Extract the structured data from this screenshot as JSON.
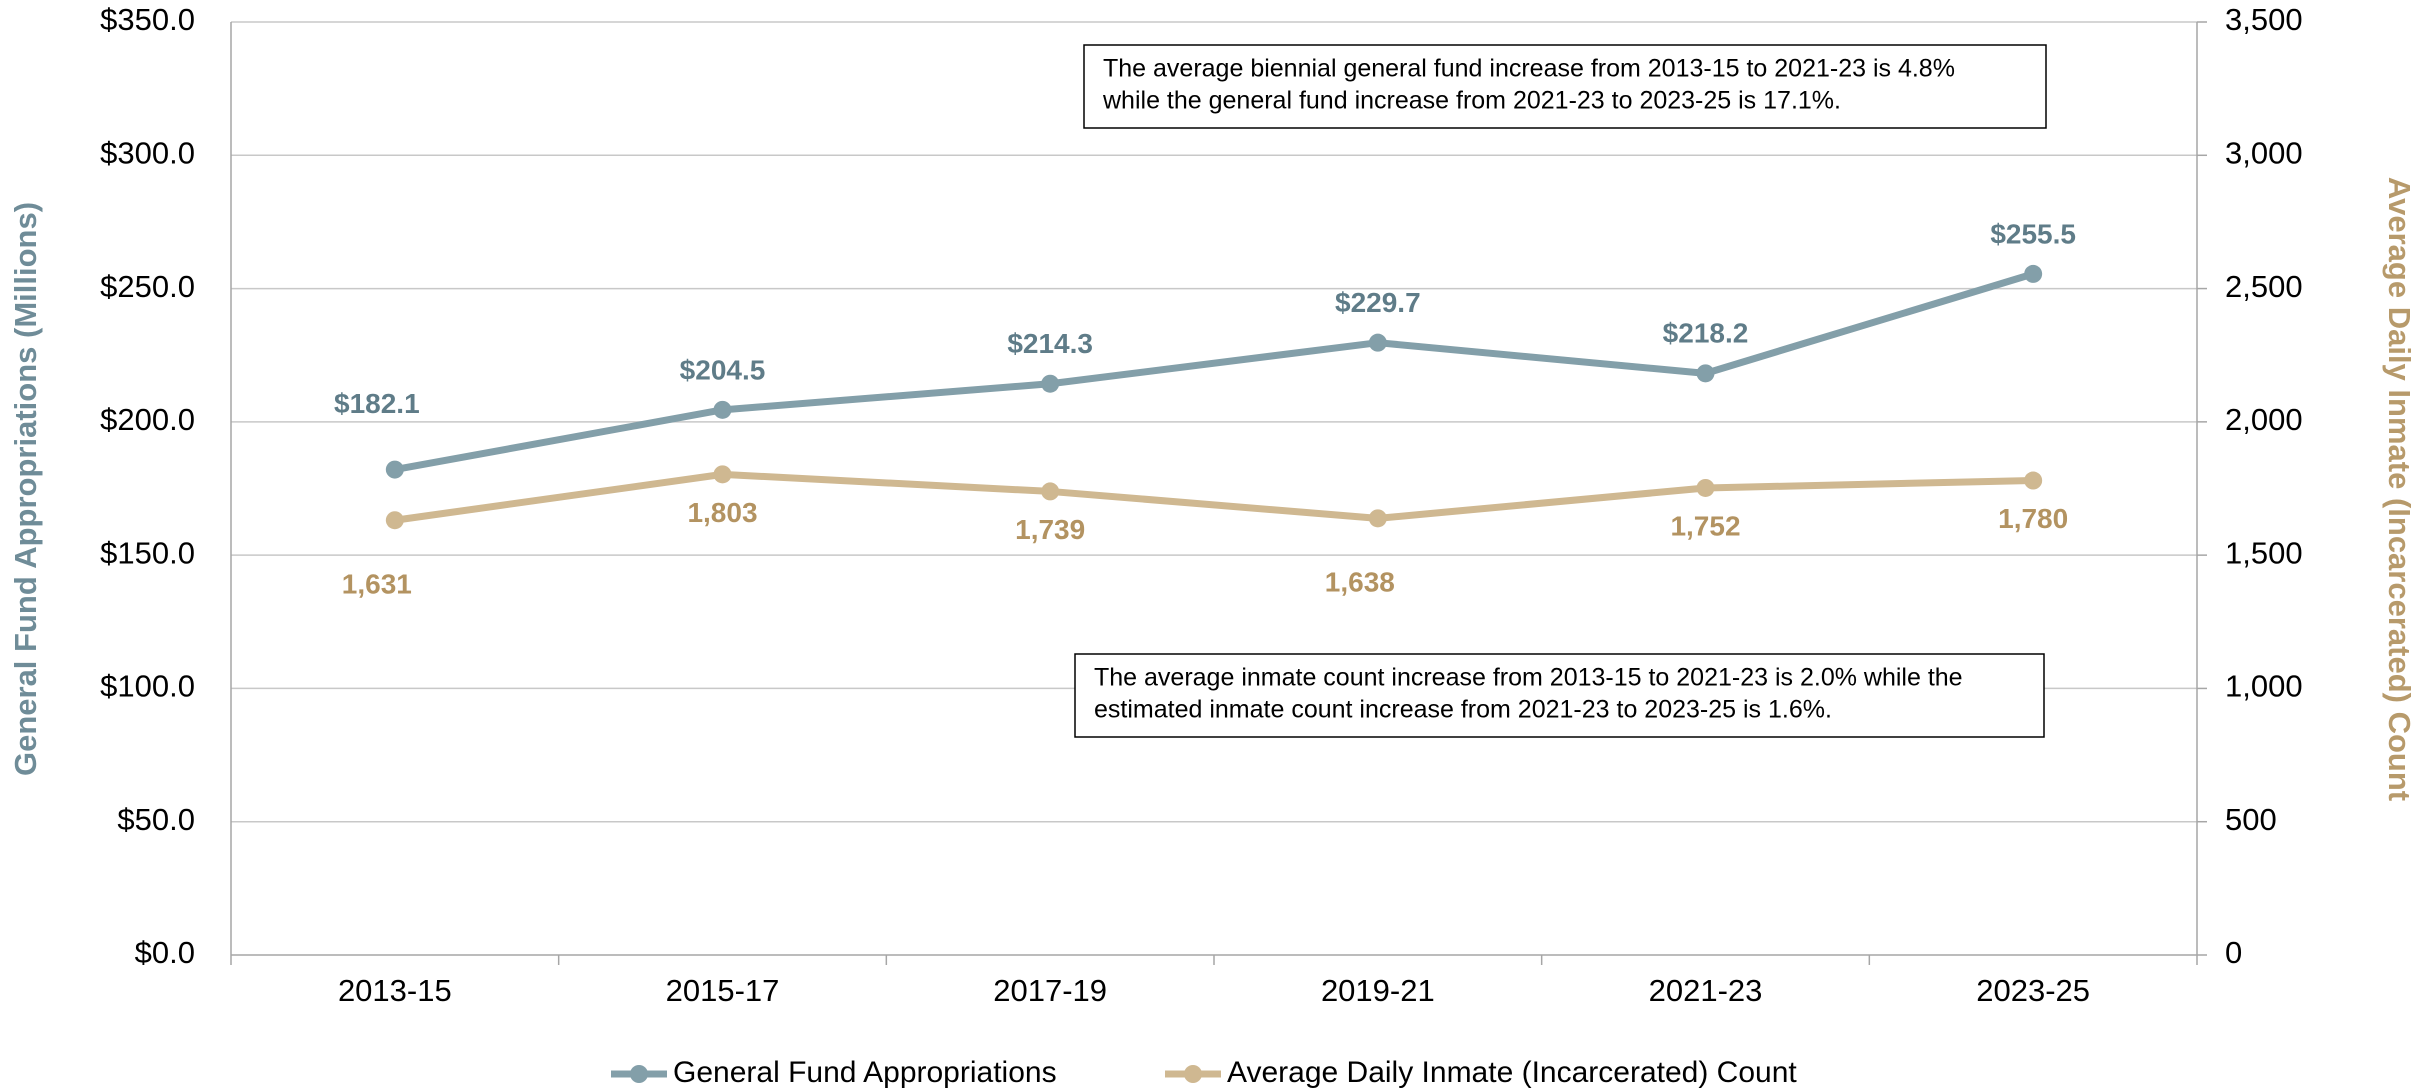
{
  "chart_data": {
    "type": "line",
    "categories": [
      "2013-15",
      "2015-17",
      "2017-19",
      "2019-21",
      "2021-23",
      "2023-25"
    ],
    "series": [
      {
        "name": "General Fund Appropriations",
        "color": "#839fa9",
        "label_color": "#5f7c88",
        "values": [
          182.1,
          204.5,
          214.3,
          229.7,
          218.2,
          255.5
        ],
        "value_labels": [
          "$182.1",
          "$204.5",
          "$214.3",
          "$229.7",
          "$218.2",
          "$255.5"
        ]
      },
      {
        "name": "Average Daily Inmate (Incarcerated) Count",
        "color": "#cfb891",
        "label_color": "#b39361",
        "axis": "y2",
        "values": [
          1631,
          1803,
          1739,
          1638,
          1752,
          1780
        ],
        "value_labels": [
          "1,631",
          "1,803",
          "1,739",
          "1,638",
          "1,752",
          "1,780"
        ]
      }
    ],
    "ylabel": "General Fund Appropriations (Millions)",
    "y2label": "Average Daily Inmate (Incarcerated) Count",
    "ylim": [
      0,
      350
    ],
    "yticks": [
      {
        "value": 0,
        "label": "$0.0"
      },
      {
        "value": 50,
        "label": "$50.0"
      },
      {
        "value": 100,
        "label": "$100.0"
      },
      {
        "value": 150,
        "label": "$150.0"
      },
      {
        "value": 200,
        "label": "$200.0"
      },
      {
        "value": 250,
        "label": "$250.0"
      },
      {
        "value": 300,
        "label": "$300.0"
      },
      {
        "value": 350,
        "label": "$350.0"
      }
    ],
    "y2lim": [
      0,
      3500
    ],
    "y2ticks": [
      0,
      500,
      {
        "value": 1000,
        "label": "1,000"
      },
      {
        "value": 1500,
        "label": "1,500"
      },
      {
        "value": 2000,
        "label": "2,000"
      },
      {
        "value": 2500,
        "label": "2,500"
      },
      {
        "value": 3000,
        "label": "3,000"
      },
      {
        "value": 3500,
        "label": "3,500"
      }
    ],
    "grid": true,
    "legend": "bottom",
    "annotations": [
      {
        "lines": [
          "The average biennial general fund increase from 2013-15 to 2021-23 is 4.8%",
          "while the general fund increase from 2021-23 to 2023-25 is 17.1%."
        ]
      },
      {
        "lines": [
          "The average inmate count increase from 2013-15 to 2021-23 is 2.0% while the",
          "estimated inmate count increase from 2021-23 to 2023-25 is 1.6%."
        ]
      }
    ]
  }
}
